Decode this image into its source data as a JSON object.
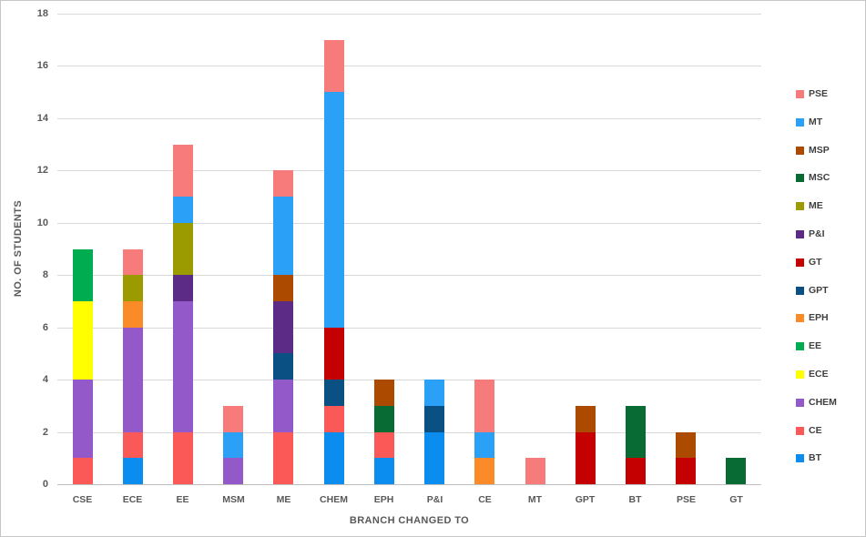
{
  "chart_data": {
    "type": "bar",
    "stacked": true,
    "title": "",
    "xlabel": "BRANCH CHANGED TO",
    "ylabel": "NO. OF STUDENTS",
    "ylim": [
      0,
      18
    ],
    "ytick_step": 2,
    "grid": true,
    "legend_position": "right",
    "categories": [
      "CSE",
      "ECE",
      "EE",
      "MSM",
      "ME",
      "CHEM",
      "EPH",
      "P&I",
      "CE",
      "MT",
      "GPT",
      "BT",
      "PSE",
      "GT"
    ],
    "series": [
      {
        "name": "BT",
        "color": "#0a8def",
        "values": [
          0,
          1,
          0,
          0,
          0,
          2,
          1,
          2,
          0,
          0,
          0,
          0,
          0,
          0
        ]
      },
      {
        "name": "CE",
        "color": "#fb5858",
        "values": [
          1,
          1,
          2,
          0,
          2,
          1,
          1,
          0,
          0,
          0,
          0,
          0,
          0,
          0
        ]
      },
      {
        "name": "CHEM",
        "color": "#9459c8",
        "values": [
          3,
          4,
          5,
          1,
          2,
          0,
          0,
          0,
          0,
          0,
          0,
          0,
          0,
          0
        ]
      },
      {
        "name": "ECE",
        "color": "#ffff00",
        "values": [
          3,
          0,
          0,
          0,
          0,
          0,
          0,
          0,
          0,
          0,
          0,
          0,
          0,
          0
        ]
      },
      {
        "name": "EE",
        "color": "#00ac50",
        "values": [
          2,
          0,
          0,
          0,
          0,
          0,
          0,
          0,
          0,
          0,
          0,
          0,
          0,
          0
        ]
      },
      {
        "name": "EPH",
        "color": "#fb8b28",
        "values": [
          0,
          1,
          0,
          0,
          0,
          0,
          0,
          0,
          1,
          0,
          0,
          0,
          0,
          0
        ]
      },
      {
        "name": "GPT",
        "color": "#0a5083",
        "values": [
          0,
          0,
          0,
          0,
          1,
          1,
          0,
          1,
          0,
          0,
          0,
          0,
          0,
          0
        ]
      },
      {
        "name": "GT",
        "color": "#c40000",
        "values": [
          0,
          0,
          0,
          0,
          0,
          2,
          0,
          0,
          0,
          0,
          2,
          1,
          1,
          0
        ]
      },
      {
        "name": "P&I",
        "color": "#5c2b86",
        "values": [
          0,
          0,
          1,
          0,
          2,
          0,
          0,
          0,
          0,
          0,
          0,
          0,
          0,
          0
        ]
      },
      {
        "name": "ME",
        "color": "#9b9b00",
        "values": [
          0,
          1,
          2,
          0,
          0,
          0,
          0,
          0,
          0,
          0,
          0,
          0,
          0,
          0
        ]
      },
      {
        "name": "MSC",
        "color": "#076b33",
        "values": [
          0,
          0,
          0,
          0,
          0,
          0,
          1,
          0,
          0,
          0,
          0,
          2,
          0,
          1
        ]
      },
      {
        "name": "MSP",
        "color": "#ac4b00",
        "values": [
          0,
          0,
          0,
          0,
          1,
          0,
          1,
          0,
          0,
          0,
          1,
          0,
          1,
          0
        ]
      },
      {
        "name": "MT",
        "color": "#2aa1f7",
        "values": [
          0,
          0,
          1,
          1,
          3,
          9,
          0,
          1,
          1,
          0,
          0,
          0,
          0,
          0
        ]
      },
      {
        "name": "PSE",
        "color": "#f87b7b",
        "values": [
          0,
          1,
          2,
          1,
          1,
          2,
          0,
          0,
          2,
          1,
          0,
          0,
          0,
          0
        ]
      }
    ],
    "legend": [
      "PSE",
      "MT",
      "MSP",
      "MSC",
      "ME",
      "P&I",
      "GT",
      "GPT",
      "EPH",
      "EE",
      "ECE",
      "CHEM",
      "CE",
      "BT"
    ]
  },
  "axis": {
    "yticks": [
      "0",
      "2",
      "4",
      "6",
      "8",
      "10",
      "12",
      "14",
      "16",
      "18"
    ]
  }
}
